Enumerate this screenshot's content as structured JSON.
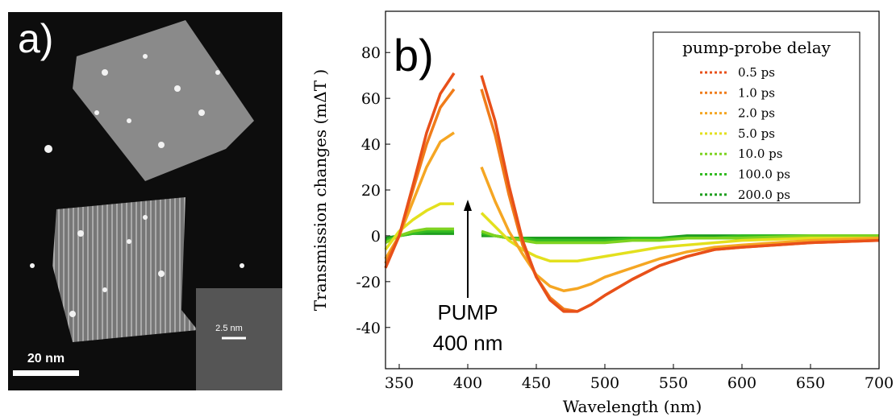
{
  "image_panel": {
    "label": "a)",
    "scale_bar": "20 nm",
    "inset_scale": "2.5 nm"
  },
  "chart_data": {
    "type": "line",
    "panel_label": "b)",
    "xlabel": "Wavelength (nm)",
    "ylabel": "Transmission changes (mΔT )",
    "annotations": [
      "PUMP",
      "400 nm"
    ],
    "legend_title": "pump-probe delay",
    "legend": "upper right",
    "xlim": [
      340,
      700
    ],
    "ylim": [
      -58,
      98
    ],
    "xticks": [
      350,
      400,
      450,
      500,
      550,
      600,
      650,
      700
    ],
    "yticks": [
      -40,
      -20,
      0,
      20,
      40,
      60,
      80
    ],
    "x": [
      340,
      350,
      360,
      370,
      380,
      390,
      400,
      410,
      420,
      430,
      440,
      450,
      460,
      470,
      480,
      490,
      500,
      520,
      540,
      560,
      580,
      600,
      650,
      700
    ],
    "series": [
      {
        "name": "0.5 ps",
        "color": "#e8501a",
        "values": [
          -14,
          0,
          22,
          45,
          62,
          71,
          null,
          70,
          50,
          22,
          -2,
          -18,
          -28,
          -33,
          -33,
          -30,
          -26,
          -19,
          -13,
          -9,
          -6,
          -5,
          -3,
          -2
        ]
      },
      {
        "name": "1.0 ps",
        "color": "#f07c1a",
        "values": [
          -12,
          0,
          20,
          40,
          56,
          64,
          null,
          64,
          44,
          18,
          -4,
          -18,
          -27,
          -32,
          -33,
          -30,
          -26,
          -19,
          -13,
          -9,
          -6,
          -5,
          -3,
          -2
        ]
      },
      {
        "name": "2.0 ps",
        "color": "#f5a623",
        "values": [
          -10,
          0,
          15,
          30,
          41,
          45,
          null,
          30,
          15,
          2,
          -8,
          -17,
          -22,
          -24,
          -23,
          -21,
          -18,
          -14,
          -10,
          -7,
          -5,
          -4,
          -2,
          -1
        ]
      },
      {
        "name": "5.0 ps",
        "color": "#e3e01e",
        "values": [
          -6,
          2,
          7,
          11,
          14,
          14,
          null,
          10,
          4,
          -2,
          -6,
          -9,
          -11,
          -11,
          -11,
          -10,
          -9,
          -7,
          -5,
          -4,
          -3,
          -2,
          -1,
          -1
        ]
      },
      {
        "name": "10.0 ps",
        "color": "#7ed321",
        "values": [
          -3,
          0,
          2,
          3,
          3,
          3,
          null,
          2,
          0,
          -1,
          -2,
          -3,
          -3,
          -3,
          -3,
          -3,
          -3,
          -2,
          -2,
          -1,
          -1,
          -1,
          0,
          0
        ]
      },
      {
        "name": "100.0 ps",
        "color": "#33bb22",
        "values": [
          -2,
          0,
          1,
          2,
          2,
          2,
          null,
          1,
          0,
          -1,
          -1,
          -2,
          -2,
          -2,
          -2,
          -2,
          -2,
          -1,
          -1,
          -1,
          -1,
          0,
          0,
          0
        ]
      },
      {
        "name": "200.0 ps",
        "color": "#1f9e1f",
        "values": [
          -1,
          0,
          1,
          1,
          1,
          1,
          null,
          0,
          0,
          -1,
          -1,
          -1,
          -1,
          -1,
          -1,
          -1,
          -1,
          -1,
          -1,
          0,
          0,
          0,
          0,
          0
        ]
      }
    ]
  }
}
